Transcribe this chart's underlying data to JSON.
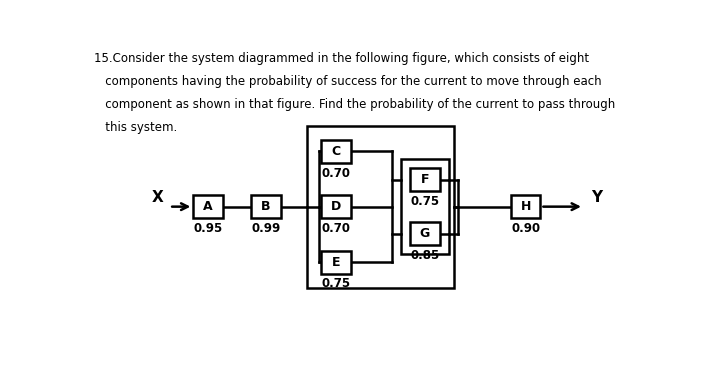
{
  "background_color": "#ffffff",
  "text_color": "#000000",
  "line_color": "#000000",
  "box_edge_color": "#000000",
  "box_face_color": "#ffffff",
  "title_lines": [
    "15.Consider the system diagrammed in the following figure, which consists of eight",
    "   components having the probability of success for the current to move through each",
    "   component as shown in that figure. Find the probability of the current to pass through",
    "   this system."
  ],
  "components": {
    "A": {
      "label": "A",
      "prob": "0.95"
    },
    "B": {
      "label": "B",
      "prob": "0.99"
    },
    "C": {
      "label": "C",
      "prob": "0.70"
    },
    "D": {
      "label": "D",
      "prob": "0.70"
    },
    "E": {
      "label": "E",
      "prob": "0.75"
    },
    "F": {
      "label": "F",
      "prob": "0.75"
    },
    "G": {
      "label": "G",
      "prob": "0.85"
    },
    "H": {
      "label": "H",
      "prob": "0.90"
    }
  },
  "X_label": "X",
  "Y_label": "Y"
}
